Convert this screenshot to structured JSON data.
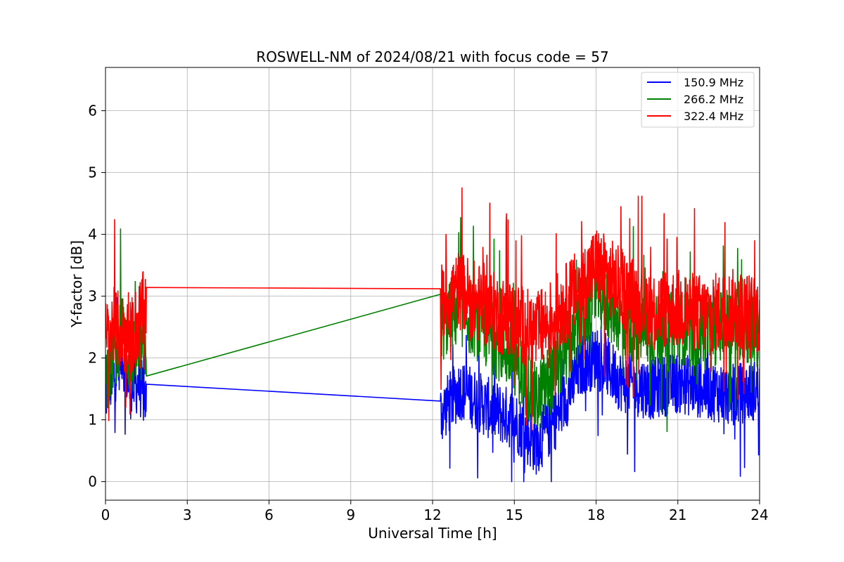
{
  "chart_data": {
    "type": "line",
    "title": "ROSWELL-NM of 2024/08/21 with focus code = 57",
    "xlabel": "Universal Time [h]",
    "ylabel": "Y-factor [dB]",
    "xlim": [
      0,
      24
    ],
    "ylim": [
      -0.3,
      6.7
    ],
    "xticks": [
      0,
      3,
      6,
      9,
      12,
      15,
      18,
      21,
      24
    ],
    "yticks": [
      0,
      1,
      2,
      3,
      4,
      5,
      6
    ],
    "grid": true,
    "legend_position": "top-right",
    "series": [
      {
        "name": "150.9 MHz",
        "color": "#0000ff",
        "noise": 0.5,
        "x": [
          0,
          0.3,
          0.6,
          0.9,
          1.2,
          1.5,
          12.3,
          13.0,
          14.0,
          15.0,
          15.8,
          16.5,
          17.5,
          18.0,
          19.0,
          20.0,
          21.0,
          22.0,
          23.0,
          24.0
        ],
        "y": [
          1.4,
          1.7,
          2.1,
          1.5,
          1.6,
          1.3,
          1.1,
          1.5,
          1.2,
          1.0,
          0.6,
          1.0,
          1.9,
          2.0,
          1.6,
          1.5,
          1.6,
          1.5,
          1.4,
          1.5
        ]
      },
      {
        "name": "266.2 MHz",
        "color": "#008000",
        "noise": 0.6,
        "x": [
          0,
          0.3,
          0.6,
          0.9,
          1.2,
          1.5,
          12.3,
          13.0,
          14.0,
          15.0,
          15.8,
          16.5,
          17.5,
          18.0,
          19.0,
          20.0,
          21.0,
          22.0,
          23.0,
          24.0
        ],
        "y": [
          1.7,
          2.0,
          2.5,
          1.9,
          2.1,
          2.2,
          2.5,
          2.8,
          2.4,
          2.0,
          1.3,
          1.8,
          2.6,
          3.1,
          2.6,
          2.4,
          2.5,
          2.4,
          2.6,
          2.4
        ]
      },
      {
        "name": "322.4 MHz",
        "color": "#ff0000",
        "noise": 0.65,
        "x": [
          0,
          0.3,
          0.6,
          0.9,
          1.2,
          1.5,
          12.3,
          13.0,
          14.0,
          15.0,
          15.8,
          16.5,
          17.5,
          18.0,
          19.0,
          20.0,
          21.0,
          22.0,
          23.0,
          24.0
        ],
        "y": [
          2.3,
          2.5,
          2.4,
          2.3,
          2.6,
          2.85,
          2.9,
          3.1,
          2.8,
          2.6,
          2.4,
          2.7,
          3.2,
          3.5,
          3.1,
          2.8,
          2.8,
          2.7,
          2.8,
          2.7
        ]
      }
    ]
  }
}
